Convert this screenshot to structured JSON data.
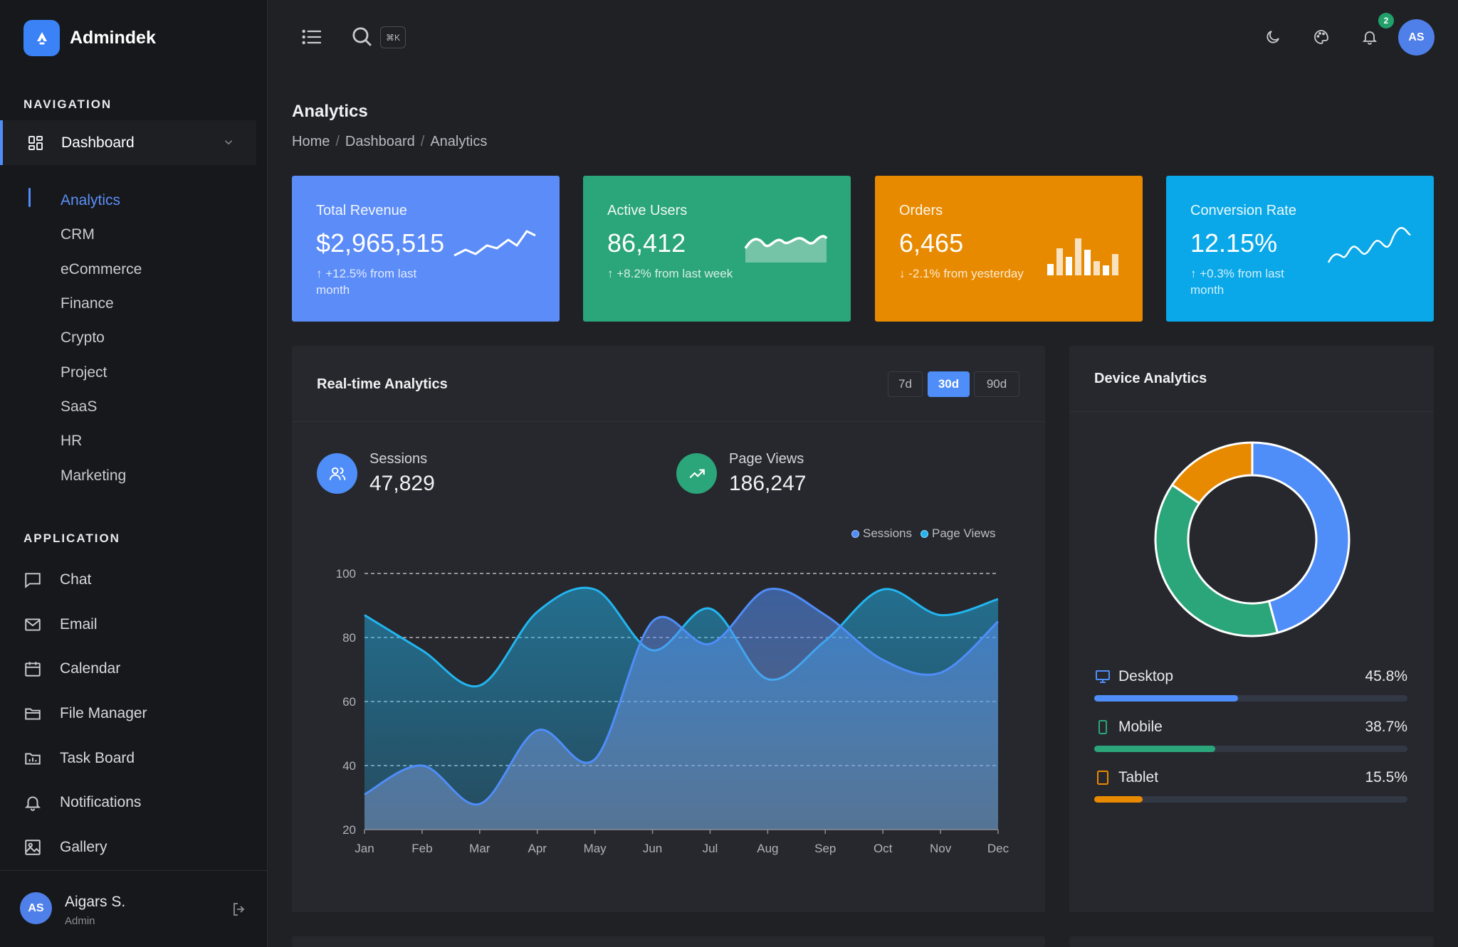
{
  "brand": {
    "name": "Admindek"
  },
  "sidebar": {
    "nav_heading": "NAVIGATION",
    "dashboard_label": "Dashboard",
    "sub_items": [
      {
        "label": "Analytics",
        "active": true
      },
      {
        "label": "CRM"
      },
      {
        "label": "eCommerce"
      },
      {
        "label": "Finance"
      },
      {
        "label": "Crypto"
      },
      {
        "label": "Project"
      },
      {
        "label": "SaaS"
      },
      {
        "label": "HR"
      },
      {
        "label": "Marketing"
      }
    ],
    "app_heading": "APPLICATION",
    "app_items": [
      {
        "label": "Chat",
        "icon": "chat-icon"
      },
      {
        "label": "Email",
        "icon": "mail-icon"
      },
      {
        "label": "Calendar",
        "icon": "calendar-icon"
      },
      {
        "label": "File Manager",
        "icon": "folder-icon"
      },
      {
        "label": "Task Board",
        "icon": "task-board-icon"
      },
      {
        "label": "Notifications",
        "icon": "bell-icon"
      },
      {
        "label": "Gallery",
        "icon": "image-icon"
      }
    ],
    "user": {
      "initials": "AS",
      "name": "Aigars S.",
      "role": "Admin"
    }
  },
  "topbar": {
    "shortcut": "⌘K",
    "notification_count": "2",
    "avatar_initials": "AS"
  },
  "page": {
    "title": "Analytics",
    "breadcrumb": [
      "Home",
      "Dashboard",
      "Analytics"
    ]
  },
  "stats": [
    {
      "title": "Total Revenue",
      "value": "$2,965,515",
      "delta": "+12.5% from last month",
      "direction": "up",
      "color": "#5b8cf8"
    },
    {
      "title": "Active Users",
      "value": "86,412",
      "delta": "+8.2% from last week",
      "direction": "up",
      "color": "#2ba57a"
    },
    {
      "title": "Orders",
      "value": "6,465",
      "delta": "-2.1% from yesterday",
      "direction": "down",
      "color": "#e88a00"
    },
    {
      "title": "Conversion Rate",
      "value": "12.15%",
      "delta": "+0.3% from last month",
      "direction": "up",
      "color": "#0aa8e8"
    }
  ],
  "realtime": {
    "title": "Real-time Analytics",
    "ranges": [
      "7d",
      "30d",
      "90d"
    ],
    "active_range": "30d",
    "sessions": {
      "label": "Sessions",
      "value": "47,829"
    },
    "pageviews": {
      "label": "Page Views",
      "value": "186,247"
    },
    "legend": [
      "Sessions",
      "Page Views"
    ]
  },
  "device": {
    "title": "Device Analytics",
    "items": [
      {
        "label": "Desktop",
        "percent": "45.8%",
        "value": 45.8,
        "color": "#4f8df8",
        "icon": "monitor-icon"
      },
      {
        "label": "Mobile",
        "percent": "38.7%",
        "value": 38.7,
        "color": "#2ba57a",
        "icon": "phone-icon"
      },
      {
        "label": "Tablet",
        "percent": "15.5%",
        "value": 15.5,
        "color": "#e88a00",
        "icon": "tablet-icon"
      }
    ]
  },
  "chart_data": {
    "type": "area",
    "categories": [
      "Jan",
      "Feb",
      "Mar",
      "Apr",
      "May",
      "Jun",
      "Jul",
      "Aug",
      "Sep",
      "Oct",
      "Nov",
      "Dec"
    ],
    "ylim": [
      20,
      100
    ],
    "yticks": [
      20,
      40,
      60,
      80,
      100
    ],
    "series": [
      {
        "name": "Sessions",
        "color": "#4f8df8",
        "values": [
          31,
          40,
          28,
          51,
          42,
          85,
          78,
          95,
          87,
          73,
          69,
          85
        ]
      },
      {
        "name": "Page Views",
        "color": "#22b5f0",
        "values": [
          87,
          76,
          65,
          88,
          95,
          76,
          89,
          67,
          79,
          95,
          87,
          92
        ]
      }
    ],
    "grid": true,
    "legend": "top-right"
  }
}
